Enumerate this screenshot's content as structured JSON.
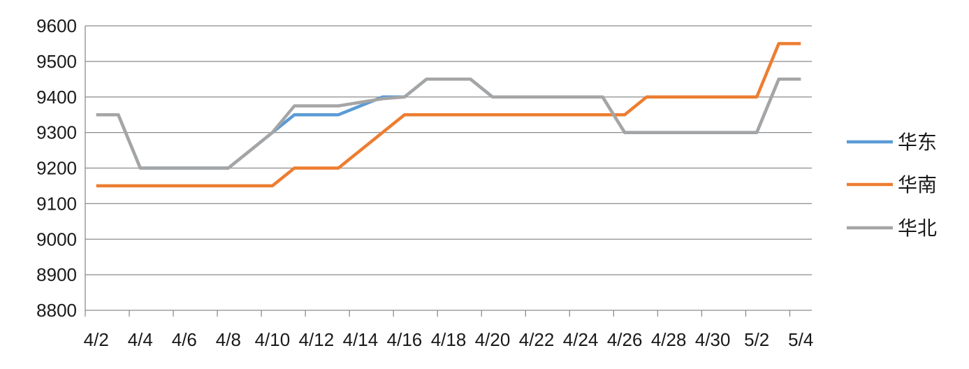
{
  "chart_data": {
    "type": "line",
    "title": "",
    "xlabel": "",
    "ylabel": "",
    "ylim": [
      8800,
      9600
    ],
    "yticks": [
      8800,
      8900,
      9000,
      9100,
      9200,
      9300,
      9400,
      9500,
      9600
    ],
    "grid": true,
    "legend": "right",
    "categories": [
      "4/2",
      "4/3",
      "4/4",
      "4/5",
      "4/6",
      "4/7",
      "4/8",
      "4/9",
      "4/10",
      "4/11",
      "4/12",
      "4/13",
      "4/14",
      "4/15",
      "4/16",
      "4/17",
      "4/18",
      "4/19",
      "4/20",
      "4/21",
      "4/22",
      "4/23",
      "4/24",
      "4/25",
      "4/26",
      "4/27",
      "4/28",
      "4/29",
      "4/30",
      "5/1",
      "5/2",
      "5/3",
      "5/4"
    ],
    "xtick_labels": [
      "4/2",
      "4/4",
      "4/6",
      "4/8",
      "4/10",
      "4/12",
      "4/14",
      "4/16",
      "4/18",
      "4/20",
      "4/22",
      "4/24",
      "4/26",
      "4/28",
      "4/30",
      "5/2",
      "5/4"
    ],
    "series": [
      {
        "name": "华东",
        "color": "#5b9bd5",
        "values": [
          9350,
          9350,
          9200,
          9200,
          9200,
          9200,
          9200,
          9250,
          9300,
          9350,
          9350,
          9350,
          9375,
          9400,
          9400,
          9450,
          9450,
          9450,
          9400,
          9400,
          9400,
          9400,
          9400,
          9400,
          9300,
          9300,
          9300,
          9300,
          9300,
          9300,
          9300,
          9450,
          9450
        ]
      },
      {
        "name": "华南",
        "color": "#ed7d31",
        "values": [
          9150,
          9150,
          9150,
          9150,
          9150,
          9150,
          9150,
          9150,
          9150,
          9200,
          9200,
          9200,
          9250,
          9300,
          9350,
          9350,
          9350,
          9350,
          9350,
          9350,
          9350,
          9350,
          9350,
          9350,
          9350,
          9400,
          9400,
          9400,
          9400,
          9400,
          9400,
          9550,
          9550
        ]
      },
      {
        "name": "华北",
        "color": "#a5a5a5",
        "values": [
          9350,
          9350,
          9200,
          9200,
          9200,
          9200,
          9200,
          9250,
          9300,
          9375,
          9375,
          9375,
          9385,
          9395,
          9400,
          9450,
          9450,
          9450,
          9400,
          9400,
          9400,
          9400,
          9400,
          9400,
          9300,
          9300,
          9300,
          9300,
          9300,
          9300,
          9300,
          9450,
          9450
        ]
      }
    ]
  }
}
